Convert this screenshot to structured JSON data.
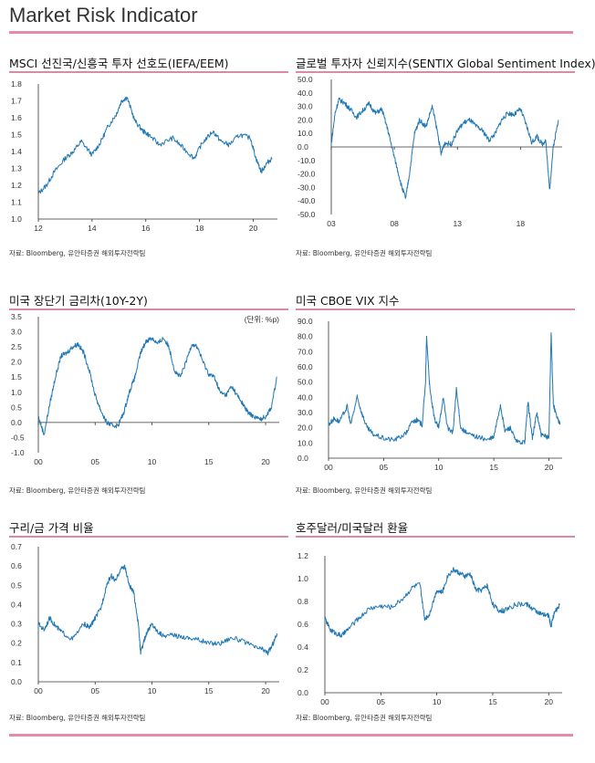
{
  "page": {
    "title": "Market Risk Indicator"
  },
  "colors": {
    "accent": "#e48aab",
    "line": "#1f77b4",
    "axis": "#333333"
  },
  "panels": [
    {
      "title": "MSCI 선진국/신흥국 투자 선호도(IEFA/EEM)",
      "source": "자료: Bloomberg, 유안타증권 해외투자전략팀",
      "unit": ""
    },
    {
      "title": "글로벌 투자자 신뢰지수(SENTIX Global Sentiment Index)",
      "source": "자료: Bloomberg, 유안타증권 해외투자전략팀",
      "unit": ""
    },
    {
      "title": "미국 장단기 금리차(10Y-2Y)",
      "source": "자료: Bloomberg, 유안타증권 해외투자전략팀",
      "unit": "(단위: %p)"
    },
    {
      "title": "미국 CBOE VIX 지수",
      "source": "자료: Bloomberg, 유안타증권 해외투자전략팀",
      "unit": ""
    },
    {
      "title": "구리/금 가격 비율",
      "source": "자료: Bloomberg, 유안타증권 해외투자전략팀",
      "unit": ""
    },
    {
      "title": "호주달러/미국달러 환율",
      "source": "자료: Bloomberg, 유안타증권 해외투자전략팀",
      "unit": ""
    }
  ],
  "chart_data": [
    {
      "type": "line",
      "title": "MSCI 선진국/신흥국 투자 선호도(IEFA/EEM)",
      "xlim": [
        2012,
        2020.9
      ],
      "xticks": [
        12,
        14,
        16,
        18,
        20
      ],
      "xtick_values": [
        2012,
        2014,
        2016,
        2018,
        2020
      ],
      "ylim": [
        1.0,
        1.8
      ],
      "yticks": [
        "1.0",
        "1.1",
        "1.2",
        "1.3",
        "1.4",
        "1.5",
        "1.6",
        "1.7",
        "1.8"
      ],
      "x": [
        2012.0,
        2012.3,
        2012.6,
        2013.0,
        2013.3,
        2013.6,
        2014.0,
        2014.3,
        2014.6,
        2014.9,
        2015.1,
        2015.3,
        2015.6,
        2015.9,
        2016.1,
        2016.5,
        2017.0,
        2017.4,
        2017.8,
        2018.1,
        2018.5,
        2018.8,
        2019.1,
        2019.5,
        2019.9,
        2020.1,
        2020.3,
        2020.5,
        2020.7
      ],
      "y": [
        1.15,
        1.2,
        1.28,
        1.36,
        1.4,
        1.46,
        1.38,
        1.45,
        1.55,
        1.62,
        1.7,
        1.72,
        1.58,
        1.52,
        1.5,
        1.44,
        1.48,
        1.42,
        1.36,
        1.45,
        1.52,
        1.46,
        1.44,
        1.5,
        1.48,
        1.36,
        1.28,
        1.33,
        1.36
      ]
    },
    {
      "type": "line",
      "title": "글로벌 투자자 신뢰지수(SENTIX Global Sentiment Index)",
      "xlim": [
        2003,
        2021.3
      ],
      "xticks": [
        "03",
        "08",
        "13",
        "18"
      ],
      "xtick_values": [
        2003,
        2008,
        2013,
        2018
      ],
      "ylim": [
        -50,
        50
      ],
      "yticks": [
        "50.0",
        "40.0",
        "30.0",
        "20.0",
        "10.0",
        "0.0",
        "-10.0",
        "-20.0",
        "-30.0",
        "-40.0",
        "-50.0"
      ],
      "x": [
        2003.0,
        2003.3,
        2003.6,
        2004.0,
        2004.5,
        2005.0,
        2005.5,
        2006.0,
        2006.5,
        2007.0,
        2007.5,
        2007.8,
        2008.2,
        2008.6,
        2008.9,
        2009.2,
        2009.6,
        2010.0,
        2010.5,
        2011.0,
        2011.4,
        2011.7,
        2012.0,
        2012.5,
        2013.0,
        2013.5,
        2014.0,
        2014.5,
        2015.0,
        2015.5,
        2016.0,
        2016.5,
        2017.0,
        2017.5,
        2018.0,
        2018.5,
        2018.9,
        2019.3,
        2019.7,
        2020.0,
        2020.3,
        2020.6,
        2021.0
      ],
      "y": [
        2,
        25,
        35,
        33,
        28,
        22,
        27,
        32,
        25,
        28,
        12,
        0,
        -15,
        -30,
        -38,
        -20,
        10,
        20,
        15,
        30,
        12,
        -5,
        3,
        2,
        12,
        18,
        20,
        15,
        12,
        5,
        10,
        20,
        25,
        24,
        28,
        15,
        3,
        8,
        2,
        5,
        -32,
        0,
        20
      ]
    },
    {
      "type": "line",
      "title": "미국 장단기 금리차(10Y-2Y)",
      "unit": "(단위: %p)",
      "xlim": [
        2000,
        2021.2
      ],
      "xticks": [
        "00",
        "05",
        "10",
        "15",
        "20"
      ],
      "xtick_values": [
        2000,
        2005,
        2010,
        2015,
        2020
      ],
      "ylim": [
        -1.0,
        3.5
      ],
      "yticks": [
        "3.5",
        "3.0",
        "2.5",
        "2.0",
        "1.5",
        "1.0",
        "0.5",
        "0.0",
        "-0.5",
        "-1.0"
      ],
      "x": [
        2000.0,
        2000.5,
        2001.0,
        2001.5,
        2002.0,
        2002.5,
        2003.0,
        2003.5,
        2004.0,
        2004.5,
        2005.0,
        2005.5,
        2006.0,
        2006.5,
        2007.0,
        2007.5,
        2008.0,
        2008.5,
        2009.0,
        2009.5,
        2010.0,
        2010.5,
        2011.0,
        2011.5,
        2012.0,
        2012.5,
        2013.0,
        2013.5,
        2014.0,
        2014.5,
        2015.0,
        2015.5,
        2016.0,
        2016.5,
        2017.0,
        2017.5,
        2018.0,
        2018.5,
        2019.0,
        2019.5,
        2020.0,
        2020.5,
        2021.0
      ],
      "y": [
        0.2,
        -0.4,
        0.6,
        1.5,
        2.2,
        2.3,
        2.5,
        2.6,
        2.3,
        1.7,
        0.9,
        0.4,
        0.0,
        -0.1,
        -0.1,
        0.3,
        1.0,
        1.5,
        2.3,
        2.7,
        2.8,
        2.6,
        2.8,
        2.5,
        1.7,
        1.5,
        2.0,
        2.6,
        2.5,
        2.0,
        1.6,
        1.5,
        1.0,
        0.9,
        1.2,
        0.9,
        0.6,
        0.3,
        0.2,
        0.1,
        0.2,
        0.5,
        1.5
      ]
    },
    {
      "type": "line",
      "title": "미국 CBOE VIX 지수",
      "xlim": [
        2000,
        2021.2
      ],
      "xticks": [
        "00",
        "05",
        "10",
        "15",
        "20"
      ],
      "xtick_values": [
        2000,
        2005,
        2010,
        2015,
        2020
      ],
      "ylim": [
        0,
        90
      ],
      "yticks": [
        "90.0",
        "80.0",
        "70.0",
        "60.0",
        "50.0",
        "40.0",
        "30.0",
        "20.0",
        "10.0",
        "0.0"
      ],
      "x": [
        2000.0,
        2000.5,
        2001.0,
        2001.7,
        2002.0,
        2002.6,
        2003.0,
        2003.5,
        2004.0,
        2005.0,
        2006.0,
        2007.0,
        2007.6,
        2008.0,
        2008.5,
        2008.8,
        2008.9,
        2009.2,
        2009.6,
        2010.0,
        2010.4,
        2010.8,
        2011.3,
        2011.6,
        2012.0,
        2012.6,
        2013.5,
        2014.5,
        2015.0,
        2015.6,
        2016.0,
        2016.5,
        2017.0,
        2017.8,
        2018.1,
        2018.5,
        2018.9,
        2019.3,
        2019.8,
        2020.0,
        2020.2,
        2020.4,
        2020.7,
        2021.0
      ],
      "y": [
        22,
        26,
        24,
        34,
        22,
        40,
        30,
        20,
        16,
        13,
        12,
        16,
        24,
        25,
        22,
        50,
        80,
        45,
        26,
        20,
        40,
        20,
        17,
        45,
        20,
        16,
        14,
        12,
        14,
        35,
        18,
        20,
        11,
        10,
        37,
        13,
        30,
        15,
        14,
        14,
        82,
        35,
        28,
        22
      ]
    },
    {
      "type": "line",
      "title": "구리/금 가격 비율",
      "xlim": [
        2000,
        2021.2
      ],
      "xticks": [
        "00",
        "05",
        "10",
        "15",
        "20"
      ],
      "xtick_values": [
        2000,
        2005,
        2010,
        2015,
        2020
      ],
      "ylim": [
        0.0,
        0.7
      ],
      "yticks": [
        "0.7",
        "0.6",
        "0.5",
        "0.4",
        "0.3",
        "0.2",
        "0.1",
        "0.0"
      ],
      "x": [
        2000.0,
        2000.5,
        2001.0,
        2001.5,
        2002.0,
        2003.0,
        2004.0,
        2004.5,
        2005.0,
        2005.5,
        2006.0,
        2006.4,
        2006.8,
        2007.2,
        2007.6,
        2008.0,
        2008.4,
        2008.8,
        2009.0,
        2009.5,
        2010.0,
        2010.5,
        2011.0,
        2012.0,
        2013.0,
        2014.0,
        2015.0,
        2016.0,
        2017.0,
        2018.0,
        2019.0,
        2019.7,
        2020.2,
        2020.6,
        2021.0
      ],
      "y": [
        0.3,
        0.27,
        0.33,
        0.29,
        0.26,
        0.22,
        0.3,
        0.28,
        0.33,
        0.38,
        0.5,
        0.55,
        0.52,
        0.58,
        0.6,
        0.5,
        0.46,
        0.3,
        0.15,
        0.25,
        0.3,
        0.26,
        0.24,
        0.24,
        0.23,
        0.22,
        0.2,
        0.2,
        0.23,
        0.21,
        0.18,
        0.17,
        0.15,
        0.19,
        0.25
      ]
    },
    {
      "type": "line",
      "title": "호주달러/미국달러 환율",
      "xlim": [
        2000,
        2021.2
      ],
      "xticks": [
        "00",
        "05",
        "10",
        "15",
        "20"
      ],
      "xtick_values": [
        2000,
        2005,
        2010,
        2015,
        2020
      ],
      "ylim": [
        0.0,
        1.2
      ],
      "yticks": [
        "1.2",
        "1.0",
        "0.8",
        "0.6",
        "0.4",
        "0.2",
        "0.0"
      ],
      "x": [
        2000.0,
        2000.5,
        2001.0,
        2001.5,
        2002.0,
        2003.0,
        2004.0,
        2005.0,
        2006.0,
        2007.0,
        2007.9,
        2008.5,
        2008.9,
        2009.3,
        2010.0,
        2010.5,
        2011.0,
        2011.5,
        2012.0,
        2012.5,
        2013.0,
        2013.5,
        2014.0,
        2014.5,
        2015.0,
        2015.5,
        2016.0,
        2017.0,
        2018.0,
        2018.5,
        2019.0,
        2019.5,
        2020.0,
        2020.2,
        2020.5,
        2021.0
      ],
      "y": [
        0.65,
        0.55,
        0.52,
        0.5,
        0.55,
        0.65,
        0.74,
        0.76,
        0.75,
        0.83,
        0.93,
        0.95,
        0.65,
        0.68,
        0.9,
        0.88,
        1.03,
        1.08,
        1.05,
        1.02,
        1.04,
        0.9,
        0.9,
        0.94,
        0.78,
        0.72,
        0.72,
        0.77,
        0.78,
        0.74,
        0.71,
        0.68,
        0.68,
        0.58,
        0.7,
        0.77
      ]
    }
  ]
}
